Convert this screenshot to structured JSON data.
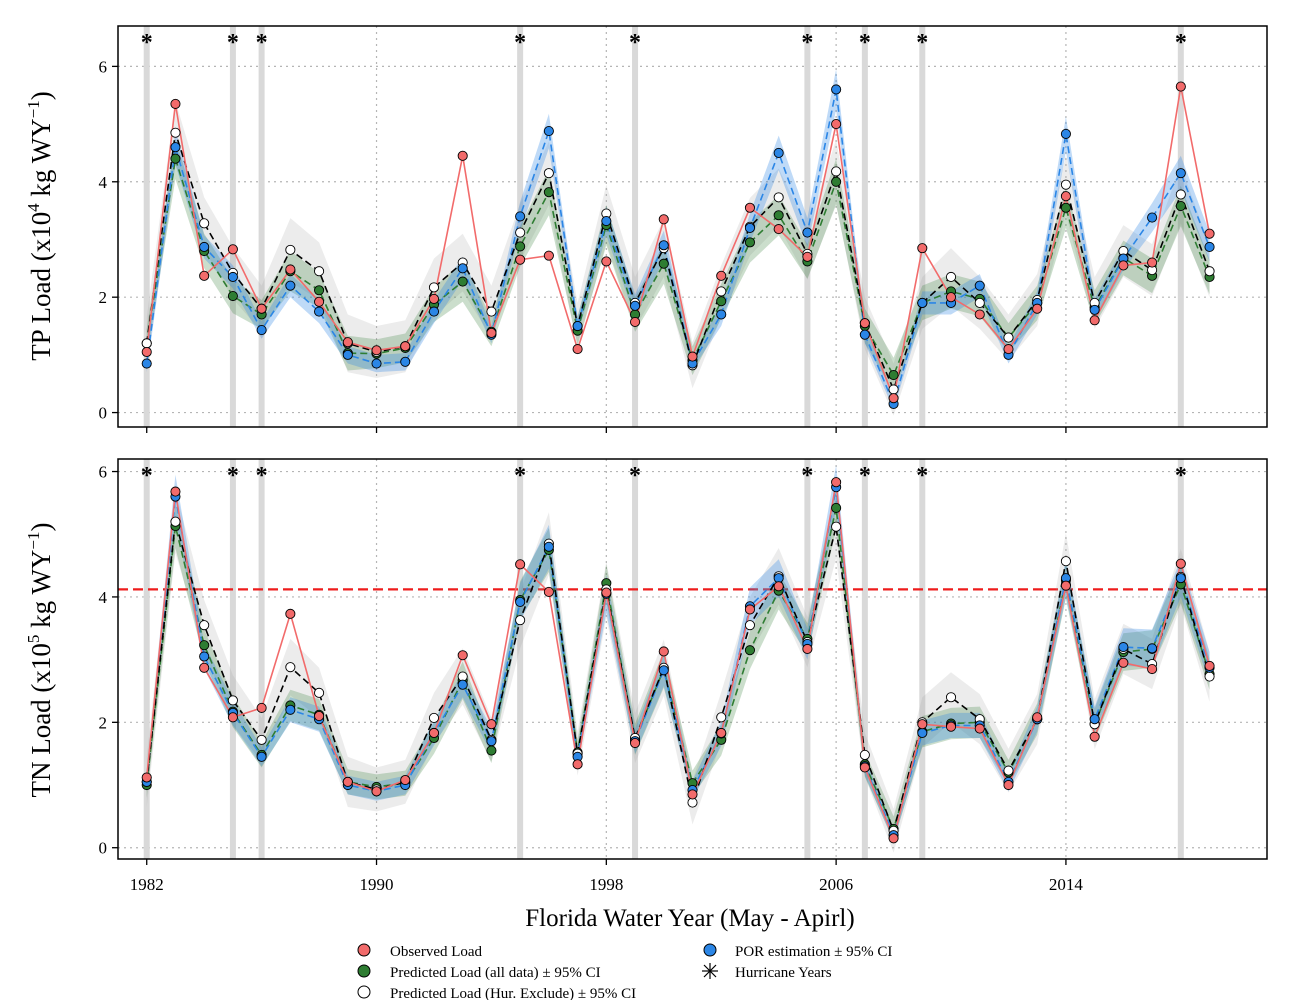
{
  "figure": {
    "xlabel": "Florida Water Year (May - Apirl)",
    "x_ticks": [
      "1982",
      "1990",
      "1998",
      "2006",
      "2014"
    ],
    "hurricane_marker": "*"
  },
  "legend": {
    "items": [
      {
        "label": "Observed Load",
        "symbol": "circle",
        "color": "#f26b6b"
      },
      {
        "label": "Predicted Load (all data) ± 95% CI",
        "symbol": "circle",
        "color": "#2e7d32"
      },
      {
        "label": "Predicted Load (Hur. Exclude) ± 95% CI",
        "symbol": "circle",
        "color": "#ffffff"
      },
      {
        "label": "POR estimation ± 95% CI",
        "symbol": "circle",
        "color": "#2b86e6"
      },
      {
        "label": "Hurricane Years",
        "symbol": "asterisk",
        "color": "#000000"
      }
    ]
  },
  "chart_data": [
    {
      "type": "line",
      "ylabel_main": "TP Load (x10",
      "ylabel_exp": "4",
      "ylabel_unit": " kg WY",
      "ylabel_unit_exp": "−1",
      "ylabel_close": ")",
      "ylim": [
        -0.25,
        6.7
      ],
      "y_ticks": [
        "0",
        "2",
        "4",
        "6"
      ],
      "xlim": [
        1981.0,
        2021.0
      ],
      "grid": true,
      "x": [
        1982,
        1983,
        1984,
        1985,
        1986,
        1987,
        1988,
        1989,
        1990,
        1991,
        1992,
        1993,
        1994,
        1995,
        1996,
        1997,
        1998,
        1999,
        2000,
        2001,
        2002,
        2003,
        2004,
        2005,
        2006,
        2007,
        2008,
        2009,
        2010,
        2011,
        2012,
        2013,
        2014,
        2015,
        2016,
        2017,
        2018,
        2019
      ],
      "hurricane_years": [
        1982,
        1985,
        1986,
        1995,
        1999,
        2005,
        2007,
        2009,
        2018
      ],
      "series": [
        {
          "name": "Observed Load",
          "style": "observed",
          "color": "#f26b6b",
          "values": [
            1.05,
            5.35,
            2.37,
            2.83,
            1.8,
            2.48,
            1.92,
            1.22,
            1.08,
            1.15,
            1.97,
            4.45,
            1.38,
            2.65,
            2.72,
            1.1,
            2.62,
            1.57,
            3.35,
            0.97,
            2.37,
            3.55,
            3.18,
            2.7,
            5.0,
            1.55,
            0.25,
            2.85,
            2.0,
            1.7,
            1.1,
            1.8,
            3.75,
            1.6,
            2.55,
            2.6,
            5.65,
            3.1
          ]
        },
        {
          "name": "Predicted Load (all data) ± 95% CI",
          "style": "allData",
          "color": "#2e7d32",
          "values": [
            1.2,
            4.4,
            2.8,
            2.02,
            1.7,
            2.45,
            2.12,
            1.03,
            1.02,
            1.12,
            1.87,
            2.27,
            1.4,
            2.88,
            3.82,
            1.42,
            3.25,
            1.7,
            2.58,
            0.9,
            1.93,
            2.95,
            3.42,
            2.62,
            4.0,
            1.5,
            0.65,
            1.9,
            2.1,
            1.97,
            1.3,
            1.9,
            3.55,
            1.82,
            2.68,
            2.37,
            3.58,
            2.35
          ],
          "ci": [
            0.25,
            0.35,
            0.3,
            0.3,
            0.25,
            0.35,
            0.3,
            0.3,
            0.25,
            0.25,
            0.3,
            0.35,
            0.25,
            0.35,
            0.4,
            0.25,
            0.35,
            0.3,
            0.35,
            0.25,
            0.3,
            0.35,
            0.35,
            0.3,
            0.4,
            0.3,
            0.3,
            0.3,
            0.3,
            0.3,
            0.25,
            0.3,
            0.35,
            0.3,
            0.3,
            0.3,
            0.35,
            0.3
          ]
        },
        {
          "name": "Predicted Load (Hur. Exclude) ± 95% CI",
          "style": "hurExclude",
          "color": "#ffffff",
          "values": [
            1.2,
            4.85,
            3.28,
            2.42,
            1.8,
            2.82,
            2.45,
            1.2,
            1.05,
            1.15,
            2.17,
            2.6,
            1.75,
            3.12,
            4.15,
            1.5,
            3.45,
            1.9,
            2.85,
            0.82,
            2.1,
            3.22,
            3.73,
            2.75,
            4.18,
            1.55,
            0.4,
            1.9,
            2.35,
            1.9,
            1.3,
            1.95,
            3.95,
            1.9,
            2.8,
            2.47,
            3.78,
            2.45
          ],
          "ci": [
            0.45,
            0.55,
            0.45,
            0.45,
            0.4,
            0.55,
            0.5,
            0.5,
            0.45,
            0.45,
            0.5,
            0.5,
            0.45,
            0.5,
            0.55,
            0.4,
            0.5,
            0.45,
            0.5,
            0.4,
            0.45,
            0.5,
            0.5,
            0.45,
            0.55,
            0.45,
            0.45,
            0.45,
            0.5,
            0.45,
            0.4,
            0.45,
            0.5,
            0.45,
            0.45,
            0.45,
            0.5,
            0.45
          ]
        },
        {
          "name": "POR estimation ± 95% CI",
          "style": "por",
          "color": "#2b86e6",
          "values": [
            0.85,
            4.6,
            2.87,
            2.35,
            1.43,
            2.2,
            1.75,
            1.0,
            0.85,
            0.88,
            1.75,
            2.5,
            1.35,
            3.4,
            4.88,
            1.5,
            3.32,
            1.85,
            2.9,
            0.85,
            1.7,
            3.2,
            4.5,
            3.12,
            5.6,
            1.35,
            0.15,
            1.9,
            1.9,
            2.2,
            1.0,
            1.9,
            4.83,
            1.78,
            2.67,
            3.38,
            4.15,
            2.87
          ],
          "ci": [
            0.15,
            0.3,
            0.2,
            0.2,
            0.15,
            0.2,
            0.2,
            0.15,
            0.15,
            0.15,
            0.2,
            0.2,
            0.15,
            0.25,
            0.3,
            0.15,
            0.25,
            0.2,
            0.25,
            0.1,
            0.2,
            0.25,
            0.3,
            0.25,
            0.35,
            0.15,
            0.1,
            0.2,
            0.2,
            0.2,
            0.15,
            0.2,
            0.3,
            0.2,
            0.2,
            0.25,
            0.3,
            0.25
          ]
        }
      ]
    },
    {
      "type": "line",
      "ylabel_main": "TN Load (x10",
      "ylabel_exp": "5",
      "ylabel_unit": " kg WY",
      "ylabel_unit_exp": "−1",
      "ylabel_close": ")",
      "ylim": [
        -0.18,
        6.2
      ],
      "y_ticks": [
        "0",
        "2",
        "4",
        "6"
      ],
      "xlim": [
        1981.0,
        2021.0
      ],
      "grid": true,
      "reference_line": {
        "y": 4.12,
        "color": "#ee1c1c"
      },
      "x": [
        1982,
        1983,
        1984,
        1985,
        1986,
        1987,
        1988,
        1989,
        1990,
        1991,
        1992,
        1993,
        1994,
        1995,
        1996,
        1997,
        1998,
        1999,
        2000,
        2001,
        2002,
        2003,
        2004,
        2005,
        2006,
        2007,
        2008,
        2009,
        2010,
        2011,
        2012,
        2013,
        2014,
        2015,
        2016,
        2017,
        2018,
        2019
      ],
      "hurricane_years": [
        1982,
        1985,
        1986,
        1995,
        1999,
        2005,
        2007,
        2009,
        2018
      ],
      "series": [
        {
          "name": "Observed Load",
          "style": "observed",
          "color": "#f26b6b",
          "values": [
            1.12,
            5.68,
            2.87,
            2.08,
            2.23,
            3.73,
            2.1,
            1.05,
            0.9,
            1.08,
            1.83,
            3.07,
            1.97,
            4.52,
            4.08,
            1.33,
            4.07,
            1.67,
            3.13,
            0.85,
            1.83,
            3.8,
            4.17,
            3.17,
            5.83,
            1.28,
            0.15,
            1.97,
            1.93,
            1.9,
            1.0,
            2.08,
            4.18,
            1.77,
            2.95,
            2.85,
            4.53,
            2.9
          ]
        },
        {
          "name": "Predicted Load (all data) ± 95% CI",
          "style": "allData",
          "color": "#2e7d32",
          "values": [
            1.0,
            5.13,
            3.23,
            2.17,
            1.48,
            2.27,
            2.12,
            1.05,
            0.97,
            1.03,
            1.75,
            2.67,
            1.55,
            3.95,
            4.75,
            1.52,
            4.22,
            1.73,
            2.85,
            1.03,
            1.72,
            3.15,
            4.1,
            3.33,
            5.42,
            1.33,
            0.3,
            1.85,
            1.98,
            2.0,
            1.2,
            2.05,
            4.27,
            1.97,
            3.12,
            3.17,
            4.2,
            2.77
          ],
          "ci": [
            0.2,
            0.35,
            0.25,
            0.25,
            0.2,
            0.25,
            0.25,
            0.2,
            0.2,
            0.2,
            0.25,
            0.3,
            0.2,
            0.3,
            0.35,
            0.2,
            0.3,
            0.25,
            0.3,
            0.2,
            0.25,
            0.3,
            0.3,
            0.25,
            0.35,
            0.2,
            0.2,
            0.25,
            0.25,
            0.25,
            0.2,
            0.25,
            0.3,
            0.25,
            0.3,
            0.3,
            0.3,
            0.25
          ]
        },
        {
          "name": "Predicted Load (Hur. Exclude) ± 95% CI",
          "style": "hurExclude",
          "color": "#ffffff",
          "values": [
            1.05,
            5.2,
            3.55,
            2.35,
            1.72,
            2.88,
            2.47,
            1.05,
            0.93,
            1.05,
            2.07,
            2.73,
            1.72,
            3.63,
            4.85,
            1.5,
            4.12,
            1.75,
            2.87,
            0.72,
            2.08,
            3.55,
            4.33,
            3.28,
            5.12,
            1.48,
            0.27,
            2.0,
            2.4,
            2.05,
            1.23,
            2.05,
            4.57,
            1.97,
            3.17,
            2.93,
            4.32,
            2.73
          ],
          "ci": [
            0.4,
            0.5,
            0.4,
            0.4,
            0.35,
            0.45,
            0.4,
            0.4,
            0.35,
            0.35,
            0.4,
            0.45,
            0.35,
            0.45,
            0.5,
            0.35,
            0.45,
            0.4,
            0.45,
            0.35,
            0.4,
            0.45,
            0.45,
            0.4,
            0.5,
            0.35,
            0.35,
            0.4,
            0.4,
            0.4,
            0.35,
            0.4,
            0.45,
            0.4,
            0.4,
            0.4,
            0.45,
            0.4
          ]
        },
        {
          "name": "POR estimation ± 95% CI",
          "style": "por",
          "color": "#2b86e6",
          "values": [
            1.05,
            5.6,
            3.05,
            2.15,
            1.45,
            2.2,
            2.05,
            1.0,
            0.9,
            1.0,
            1.83,
            2.6,
            1.7,
            3.92,
            4.8,
            1.45,
            4.05,
            1.7,
            2.83,
            0.92,
            1.82,
            3.85,
            4.3,
            3.25,
            5.75,
            1.3,
            0.2,
            1.83,
            1.95,
            1.95,
            1.05,
            2.05,
            4.3,
            2.05,
            3.2,
            3.18,
            4.3,
            2.87
          ],
          "ci": [
            0.15,
            0.35,
            0.2,
            0.2,
            0.15,
            0.2,
            0.2,
            0.15,
            0.15,
            0.15,
            0.2,
            0.2,
            0.2,
            0.3,
            0.35,
            0.15,
            0.3,
            0.2,
            0.25,
            0.15,
            0.2,
            0.3,
            0.3,
            0.25,
            0.35,
            0.15,
            0.1,
            0.2,
            0.2,
            0.2,
            0.15,
            0.2,
            0.3,
            0.2,
            0.3,
            0.3,
            0.3,
            0.25
          ]
        }
      ]
    }
  ]
}
